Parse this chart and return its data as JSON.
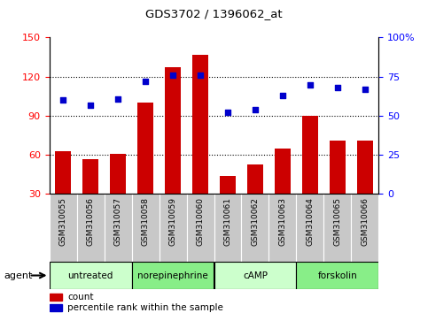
{
  "title": "GDS3702 / 1396062_at",
  "samples": [
    "GSM310055",
    "GSM310056",
    "GSM310057",
    "GSM310058",
    "GSM310059",
    "GSM310060",
    "GSM310061",
    "GSM310062",
    "GSM310063",
    "GSM310064",
    "GSM310065",
    "GSM310066"
  ],
  "counts": [
    63,
    57,
    61,
    100,
    127,
    137,
    44,
    53,
    65,
    90,
    71,
    71
  ],
  "percentiles": [
    60,
    57,
    61,
    72,
    76,
    76,
    52,
    54,
    63,
    70,
    68,
    67
  ],
  "bar_color": "#cc0000",
  "dot_color": "#0000cc",
  "ylim_left": [
    30,
    150
  ],
  "ylim_right": [
    0,
    100
  ],
  "yticks_left": [
    30,
    60,
    90,
    120,
    150
  ],
  "yticks_right": [
    0,
    25,
    50,
    75,
    100
  ],
  "yticklabels_right": [
    "0",
    "25",
    "50",
    "75",
    "100%"
  ],
  "grid_values": [
    60,
    90,
    120
  ],
  "agents": [
    {
      "label": "untreated",
      "start": 0,
      "end": 3,
      "color": "#ccffcc"
    },
    {
      "label": "norepinephrine",
      "start": 3,
      "end": 6,
      "color": "#88ee88"
    },
    {
      "label": "cAMP",
      "start": 6,
      "end": 9,
      "color": "#ccffcc"
    },
    {
      "label": "forskolin",
      "start": 9,
      "end": 12,
      "color": "#88ee88"
    }
  ],
  "agent_label": "agent",
  "legend_count_label": "count",
  "legend_percentile_label": "percentile rank within the sample",
  "tick_bg_color": "#c8c8c8"
}
